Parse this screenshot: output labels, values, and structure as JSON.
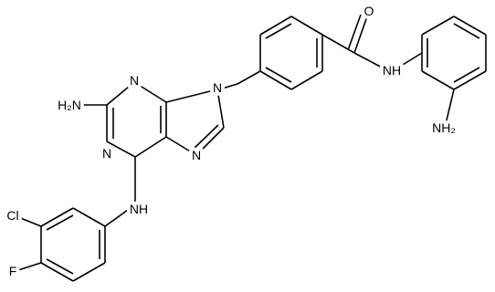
{
  "atoms": [
    {
      "label": "O"
    },
    {
      "label": "NH"
    },
    {
      "label": "NH₂"
    },
    {
      "label": "N"
    },
    {
      "label": "H₂N"
    },
    {
      "label": "N"
    },
    {
      "label": "N"
    },
    {
      "label": "N"
    },
    {
      "label": "NH"
    },
    {
      "label": "Cl"
    },
    {
      "label": "F"
    }
  ]
}
